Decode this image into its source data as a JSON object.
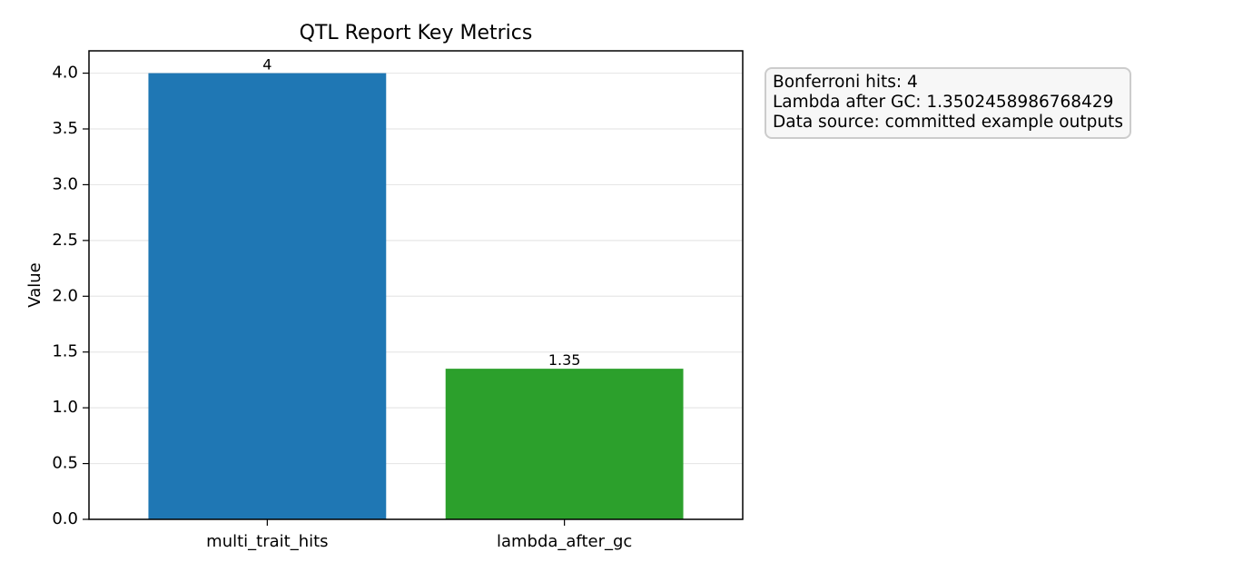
{
  "chart_data": {
    "type": "bar",
    "title": "QTL Report Key Metrics",
    "xlabel": "",
    "ylabel": "Value",
    "categories": [
      "multi_trait_hits",
      "lambda_after_gc"
    ],
    "values": [
      4,
      1.3502458986768429
    ],
    "data_labels": [
      "4",
      "1.35"
    ],
    "colors": [
      "#1f77b4",
      "#2ca02c"
    ],
    "ylim": [
      0,
      4.2
    ],
    "yticks": [
      0.0,
      0.5,
      1.0,
      1.5,
      2.0,
      2.5,
      3.0,
      3.5,
      4.0
    ],
    "ytick_labels": [
      "0.0",
      "0.5",
      "1.0",
      "1.5",
      "2.0",
      "2.5",
      "3.0",
      "3.5",
      "4.0"
    ],
    "grid": "y",
    "legend": "none"
  },
  "info_box": {
    "lines": [
      "Bonferroni hits: 4",
      "Lambda after GC: 1.3502458986768429",
      "Data source: committed example outputs"
    ]
  }
}
